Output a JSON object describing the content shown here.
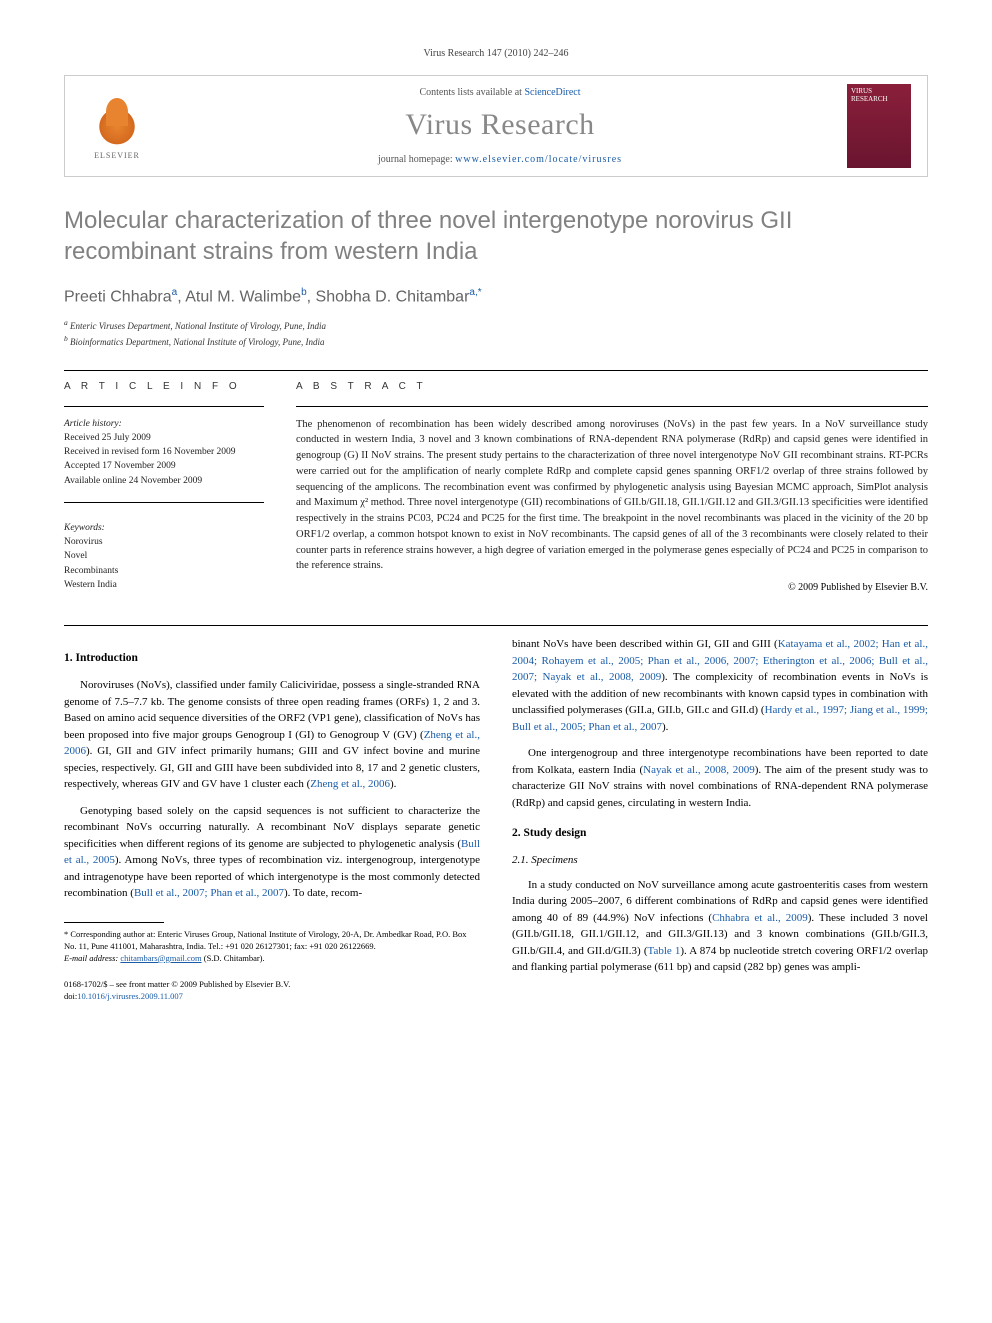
{
  "header": {
    "citation": "Virus Research 147 (2010) 242–246",
    "contents_prefix": "Contents lists available at ",
    "contents_link": "ScienceDirect",
    "journal_name": "Virus Research",
    "homepage_prefix": "journal homepage: ",
    "homepage_url": "www.elsevier.com/locate/virusres",
    "publisher_label": "ELSEVIER",
    "cover_text": "VIRUS RESEARCH"
  },
  "article": {
    "title": "Molecular characterization of three novel intergenotype norovirus GII recombinant strains from western India",
    "authors_html": "Preeti Chhabra<sup>a</sup>, Atul M. Walimbe<sup>b</sup>, Shobha D. Chitambar<sup>a,*</sup>",
    "author1": "Preeti Chhabra",
    "author1_sup": "a",
    "author2": "Atul M. Walimbe",
    "author2_sup": "b",
    "author3": "Shobha D. Chitambar",
    "author3_sup": "a,*",
    "affiliations": [
      "Enteric Viruses Department, National Institute of Virology, Pune, India",
      "Bioinformatics Department, National Institute of Virology, Pune, India"
    ],
    "aff_sup_a": "a",
    "aff_sup_b": "b"
  },
  "info": {
    "heading": "A R T I C L E   I N F O",
    "history_label": "Article history:",
    "received": "Received 25 July 2009",
    "revised": "Received in revised form 16 November 2009",
    "accepted": "Accepted 17 November 2009",
    "online": "Available online 24 November 2009",
    "keywords_label": "Keywords:",
    "keywords": [
      "Norovirus",
      "Novel",
      "Recombinants",
      "Western India"
    ]
  },
  "abstract": {
    "heading": "A B S T R A C T",
    "text": "The phenomenon of recombination has been widely described among noroviruses (NoVs) in the past few years. In a NoV surveillance study conducted in western India, 3 novel and 3 known combinations of RNA-dependent RNA polymerase (RdRp) and capsid genes were identified in genogroup (G) II NoV strains. The present study pertains to the characterization of three novel intergenotype NoV GII recombinant strains. RT-PCRs were carried out for the amplification of nearly complete RdRp and complete capsid genes spanning ORF1/2 overlap of three strains followed by sequencing of the amplicons. The recombination event was confirmed by phylogenetic analysis using Bayesian MCMC approach, SimPlot analysis and Maximum χ² method. Three novel intergenotype (GII) recombinations of GII.b/GII.18, GII.1/GII.12 and GII.3/GII.13 specificities were identified respectively in the strains PC03, PC24 and PC25 for the first time. The breakpoint in the novel recombinants was placed in the vicinity of the 20 bp ORF1/2 overlap, a common hotspot known to exist in NoV recombinants. The capsid genes of all of the 3 recombinants were closely related to their counter parts in reference strains however, a high degree of variation emerged in the polymerase genes especially of PC24 and PC25 in comparison to the reference strains.",
    "copyright": "© 2009 Published by Elsevier B.V."
  },
  "body": {
    "sec1_heading": "1. Introduction",
    "p1": "Noroviruses (NoVs), classified under family Caliciviridae, possess a single-stranded RNA genome of 7.5–7.7 kb. The genome consists of three open reading frames (ORFs) 1, 2 and 3. Based on amino acid sequence diversities of the ORF2 (VP1 gene), classification of NoVs has been proposed into five major groups Genogroup I (GI) to Genogroup V (GV) (",
    "p1_cite1": "Zheng et al., 2006",
    "p1b": "). GI, GII and GIV infect primarily humans; GIII and GV infect bovine and murine species, respectively. GI, GII and GIII have been subdivided into 8, 17 and 2 genetic clusters, respectively, whereas GIV and GV have 1 cluster each (",
    "p1_cite2": "Zheng et al., 2006",
    "p1c": ").",
    "p2": "Genotyping based solely on the capsid sequences is not sufficient to characterize the recombinant NoVs occurring naturally. A recombinant NoV displays separate genetic specificities when different regions of its genome are subjected to phylogenetic analysis (",
    "p2_cite1": "Bull et al., 2005",
    "p2b": "). Among NoVs, three types of recombination viz. intergenogroup, intergenotype and intragenotype have been reported of which intergenotype is the most commonly detected recombination (",
    "p2_cite2": "Bull et al., 2007; Phan et al., 2007",
    "p2c": "). To date, recom-",
    "p3a": "binant NoVs have been described within GI, GII and GIII (",
    "p3_cite1": "Katayama et al., 2002; Han et al., 2004; Rohayem et al., 2005; Phan et al., 2006, 2007; Etherington et al., 2006; Bull et al., 2007; Nayak et al., 2008, 2009",
    "p3b": "). The complexicity of recombination events in NoVs is elevated with the addition of new recombinants with known capsid types in combination with unclassified polymerases (GII.a, GII.b, GII.c and GII.d) (",
    "p3_cite2": "Hardy et al., 1997; Jiang et al., 1999; Bull et al., 2005; Phan et al., 2007",
    "p3c": ").",
    "p4a": "One intergenogroup and three intergenotype recombinations have been reported to date from Kolkata, eastern India (",
    "p4_cite1": "Nayak et al., 2008, 2009",
    "p4b": "). The aim of the present study was to characterize GII NoV strains with novel combinations of RNA-dependent RNA polymerase (RdRp) and capsid genes, circulating in western India.",
    "sec2_heading": "2. Study design",
    "sec21_heading": "2.1. Specimens",
    "p5a": "In a study conducted on NoV surveillance among acute gastroenteritis cases from western India during 2005–2007, 6 different combinations of RdRp and capsid genes were identified among 40 of 89 (44.9%) NoV infections (",
    "p5_cite1": "Chhabra et al., 2009",
    "p5b": "). These included 3 novel (GII.b/GII.18, GII.1/GII.12, and GII.3/GII.13) and 3 known combinations (GII.b/GII.3, GII.b/GII.4, and GII.d/GII.3) (",
    "p5_cite2": "Table 1",
    "p5c": "). A 874 bp nucleotide stretch covering ORF1/2 overlap and flanking partial polymerase (611 bp) and capsid (282 bp) genes was ampli-"
  },
  "footnote": {
    "corr_label": "* Corresponding author at: Enteric Viruses Group, National Institute of Virology, 20-A, Dr. Ambedkar Road, P.O. Box No. 11, Pune 411001, Maharashtra, India. Tel.: +91 020 26127301; fax: +91 020 26122669.",
    "email_label": "E-mail address:",
    "email": "chitambars@gmail.com",
    "email_suffix": "(S.D. Chitambar)."
  },
  "footer": {
    "issn": "0168-1702/$ – see front matter © 2009 Published by Elsevier B.V.",
    "doi_prefix": "doi:",
    "doi": "10.1016/j.virusres.2009.11.007"
  },
  "colors": {
    "link": "#1a5ca8",
    "title_gray": "#818181",
    "author_gray": "#656565"
  }
}
